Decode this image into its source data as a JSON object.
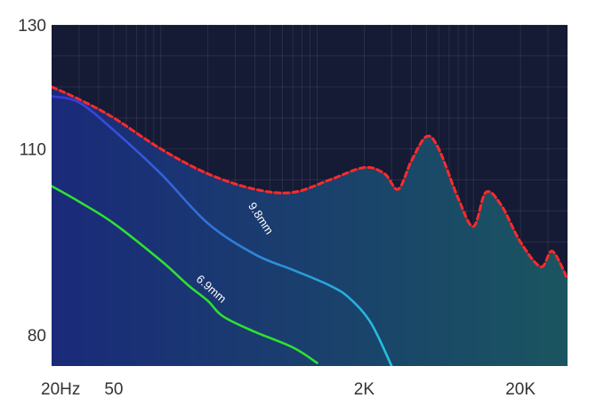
{
  "chart_data": {
    "type": "line",
    "title": "",
    "xlabel": "",
    "ylabel": "",
    "x_scale": "log",
    "xlim": [
      20,
      40000
    ],
    "ylim": [
      75,
      130
    ],
    "grid": true,
    "x_ticks": [
      {
        "value": 20,
        "label": "20Hz"
      },
      {
        "value": 50,
        "label": "50"
      },
      {
        "value": 2000,
        "label": "2K"
      },
      {
        "value": 20000,
        "label": "20K"
      }
    ],
    "y_ticks": [
      {
        "value": 130,
        "label": "130"
      },
      {
        "value": 110,
        "label": "110"
      },
      {
        "value": 80,
        "label": "80"
      }
    ],
    "series": [
      {
        "name": "",
        "style": "dashed",
        "color": "#ff2a2a",
        "fill": true,
        "points": [
          [
            20,
            120
          ],
          [
            30,
            118
          ],
          [
            50,
            115
          ],
          [
            100,
            110
          ],
          [
            200,
            106
          ],
          [
            400,
            103.5
          ],
          [
            700,
            103
          ],
          [
            1200,
            105
          ],
          [
            2000,
            107
          ],
          [
            2700,
            106
          ],
          [
            3300,
            103.5
          ],
          [
            4000,
            108
          ],
          [
            5000,
            112
          ],
          [
            6000,
            110
          ],
          [
            8000,
            102
          ],
          [
            10000,
            97.5
          ],
          [
            12000,
            103
          ],
          [
            15000,
            101
          ],
          [
            20000,
            95
          ],
          [
            27000,
            91
          ],
          [
            32000,
            93.5
          ],
          [
            40000,
            89
          ]
        ]
      },
      {
        "name": "9.8mm",
        "style": "solid",
        "color": "#3a7fe0",
        "points": [
          [
            20,
            118.5
          ],
          [
            30,
            117.5
          ],
          [
            50,
            113
          ],
          [
            100,
            106
          ],
          [
            200,
            98
          ],
          [
            400,
            93
          ],
          [
            700,
            90.5
          ],
          [
            1200,
            88
          ],
          [
            1600,
            86
          ],
          [
            2200,
            82
          ],
          [
            3000,
            75
          ]
        ]
      },
      {
        "name": "6.9mm",
        "style": "solid",
        "color": "#30e030",
        "points": [
          [
            20,
            104
          ],
          [
            30,
            101.5
          ],
          [
            50,
            98
          ],
          [
            100,
            92
          ],
          [
            150,
            88
          ],
          [
            200,
            85.5
          ],
          [
            250,
            83
          ],
          [
            400,
            80.5
          ],
          [
            700,
            78
          ],
          [
            1000,
            75.5
          ]
        ]
      }
    ],
    "annotations": [
      {
        "text": "9.8mm",
        "series": "9.8mm"
      },
      {
        "text": "6.9mm",
        "series": "6.9mm"
      }
    ],
    "colors": {
      "background": "#151a35",
      "grid": "#ffffff",
      "fill_start": "#1a2a7a",
      "fill_end": "#1a5560"
    }
  }
}
